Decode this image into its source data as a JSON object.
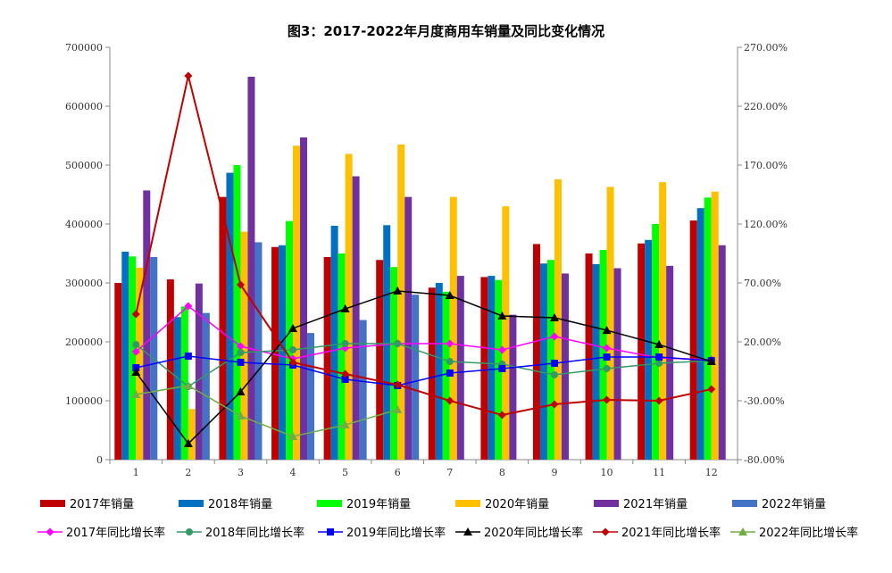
{
  "chart_data": {
    "type": "bar+line",
    "title": "图3：2017-2022年月度商用车销量及同比变化情况",
    "categories": [
      "1",
      "2",
      "3",
      "4",
      "5",
      "6",
      "7",
      "8",
      "9",
      "10",
      "11",
      "12"
    ],
    "left_axis": {
      "ylim": [
        0,
        700000
      ],
      "ticks": [
        "0",
        "100000",
        "200000",
        "300000",
        "400000",
        "500000",
        "600000",
        "700000"
      ]
    },
    "right_axis": {
      "ylim": [
        -80,
        270
      ],
      "ticks": [
        "-80.00%",
        "-30.00%",
        "20.00%",
        "70.00%",
        "120.00%",
        "170.00%",
        "220.00%",
        "270.00%"
      ]
    },
    "grid": false,
    "legend_position": "bottom",
    "bar_series": [
      {
        "name": "2017年销量",
        "color": "#C00000",
        "values": [
          300000,
          306000,
          446000,
          361000,
          344000,
          339000,
          292000,
          310000,
          366000,
          350000,
          367000,
          406000
        ]
      },
      {
        "name": "2018年销量",
        "color": "#0070C0",
        "values": [
          353000,
          242000,
          487000,
          364000,
          397000,
          398000,
          300000,
          312000,
          333000,
          332000,
          373000,
          427000
        ]
      },
      {
        "name": "2019年销量",
        "color": "#00FF00",
        "values": [
          345000,
          260000,
          500000,
          405000,
          350000,
          327000,
          285000,
          305000,
          339000,
          356000,
          400000,
          445000
        ]
      },
      {
        "name": "2020年销量",
        "color": "#FFC000",
        "values": [
          326000,
          86000,
          387000,
          533000,
          519000,
          535000,
          446000,
          430000,
          476000,
          463000,
          471000,
          455000
        ]
      },
      {
        "name": "2021年销量",
        "color": "#7030A0",
        "values": [
          457000,
          299000,
          650000,
          547000,
          481000,
          446000,
          312000,
          246000,
          316000,
          325000,
          329000,
          364000
        ]
      },
      {
        "name": "2022年销量",
        "color": "#4472C4",
        "values": [
          344000,
          249000,
          369000,
          215000,
          237000,
          280000,
          null,
          null,
          null,
          null,
          null,
          null
        ]
      }
    ],
    "line_series": [
      {
        "name": "2017年同比增长率",
        "color": "#FF00FF",
        "marker": "diamond",
        "values": [
          11.7,
          50.3,
          16.2,
          5.6,
          14.7,
          18.5,
          18.5,
          13.2,
          24.5,
          14.7,
          6.4,
          4.8
        ]
      },
      {
        "name": "2018年同比增长率",
        "color": "#339966",
        "marker": "circle",
        "values": [
          17.7,
          -17.9,
          10.9,
          13.2,
          18.5,
          18.5,
          3.3,
          1.1,
          -8.0,
          -2.7,
          1.8,
          4.0
        ]
      },
      {
        "name": "2019年同比增长率",
        "color": "#0000FF",
        "marker": "square",
        "values": [
          -2.0,
          7.9,
          2.6,
          0.3,
          -11.8,
          -17.1,
          -6.5,
          -2.7,
          1.8,
          7.1,
          7.1,
          4.0
        ]
      },
      {
        "name": "2020年同比增长率",
        "color": "#000000",
        "marker": "triangle",
        "values": [
          -5.8,
          -66.4,
          -22.4,
          31.4,
          48.0,
          63.2,
          59.4,
          42.0,
          40.5,
          29.8,
          17.7,
          3.3
        ]
      },
      {
        "name": "2021年同比增长率",
        "color": "#C00000",
        "marker": "diamond",
        "values": [
          43.5,
          245.8,
          68.5,
          2.6,
          -7.3,
          -16.4,
          -30.0,
          -42.1,
          -33.0,
          -29.2,
          -30.0,
          -20.2
        ]
      },
      {
        "name": "2022年同比增长率",
        "color": "#70AD47",
        "marker": "triangle",
        "values": [
          -24.7,
          -17.1,
          -42.9,
          -60.3,
          -50.5,
          -37.6,
          null,
          null,
          null,
          null,
          null,
          null
        ]
      }
    ]
  }
}
